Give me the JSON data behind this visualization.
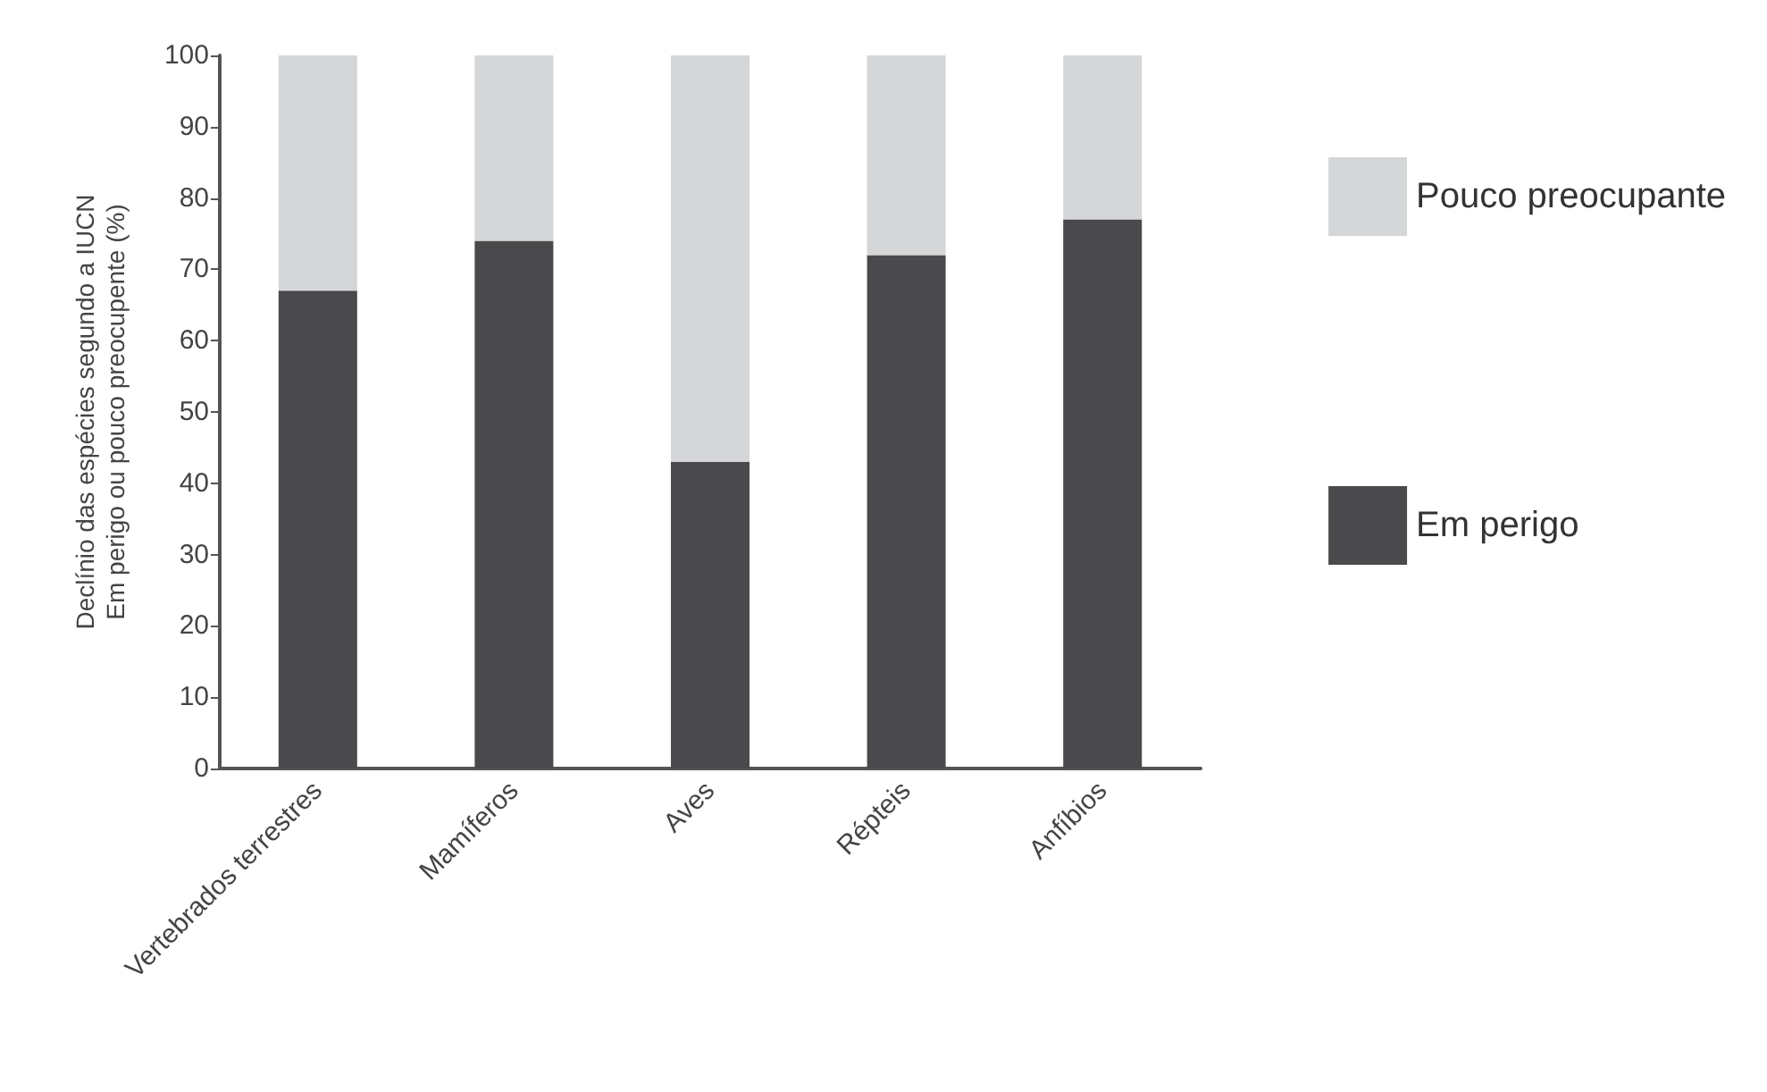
{
  "chart_data": {
    "type": "bar",
    "stacked": true,
    "ylabel": "Declínio das espécies segundo a IUCN\nEm perigo ou pouco preocupente (%)",
    "categories": [
      "Vertebrados terrestres",
      "Mamíferos",
      "Aves",
      "Répteis",
      "Anfíbios"
    ],
    "series": [
      {
        "name": "Em perigo",
        "color": "#4a4a4c",
        "values": [
          67,
          74,
          43,
          72,
          77
        ]
      },
      {
        "name": "Pouco preocupante",
        "color": "#d5d6d8",
        "values": [
          33,
          26,
          57,
          28,
          23
        ]
      }
    ],
    "ylim": [
      0,
      100
    ],
    "yticks": [
      0,
      10,
      20,
      30,
      40,
      50,
      60,
      70,
      80,
      90,
      100
    ],
    "grid": false,
    "legend": "right"
  }
}
